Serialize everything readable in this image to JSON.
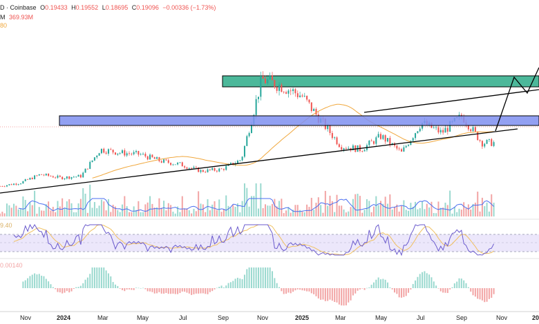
{
  "header": {
    "symbol_tail": "D",
    "exchange": "Coinbase",
    "open_label": "O",
    "open_value": "0.19433",
    "high_label": "H",
    "high_value": "0.19552",
    "low_label": "L",
    "low_value": "0.18695",
    "close_label": "C",
    "close_value": "0.19096",
    "change_value": "−0.00336 (−1.73%)",
    "volume_tail": "M",
    "volume_value": "369.93M",
    "ma_tail": "80"
  },
  "rsi_panel": {
    "label": "9.40"
  },
  "macd_panel": {
    "label": "0.00140"
  },
  "colors": {
    "up": "#26a69a",
    "down": "#ef5350",
    "ma": "#f0a73c",
    "resistance_zone": "#4cb89a",
    "support_zone": "#7f8ff0",
    "rsi_line": "#6a5acd",
    "volume_ma": "#4a6ef0",
    "hist_up": "#9ad9cf",
    "hist_down": "#f2a4a4"
  },
  "x_axis": {
    "labels": [
      "Nov",
      "2024",
      "Mar",
      "May",
      "Jul",
      "Sep",
      "Nov",
      "2025",
      "Mar",
      "May",
      "Jul",
      "Sep",
      "Nov",
      "20"
    ]
  },
  "chart_data": {
    "type": "candlestick",
    "title": "",
    "x_axis_labels": [
      "Nov",
      "2024",
      "Mar",
      "May",
      "Jul",
      "Sep",
      "Nov",
      "2025",
      "Mar",
      "May",
      "Jul",
      "Sep",
      "Nov",
      "20"
    ],
    "ohlc_last": {
      "open": 0.19433,
      "high": 0.19552,
      "low": 0.18695,
      "close": 0.19096,
      "change": -0.00336,
      "change_pct": -1.73
    },
    "volume_last": "369.93M",
    "price_path": [
      {
        "date": "2023-10",
        "price": 0.06
      },
      {
        "date": "2023-11",
        "price": 0.07
      },
      {
        "date": "2023-12",
        "price": 0.095
      },
      {
        "date": "2024-01",
        "price": 0.085
      },
      {
        "date": "2024-02",
        "price": 0.09
      },
      {
        "date": "2024-03",
        "price": 0.17
      },
      {
        "date": "2024-04",
        "price": 0.16
      },
      {
        "date": "2024-05",
        "price": 0.155
      },
      {
        "date": "2024-06",
        "price": 0.135
      },
      {
        "date": "2024-07",
        "price": 0.125
      },
      {
        "date": "2024-08",
        "price": 0.105
      },
      {
        "date": "2024-09",
        "price": 0.11
      },
      {
        "date": "2024-10",
        "price": 0.14
      },
      {
        "date": "2024-11",
        "price": 0.38
      },
      {
        "date": "2024-12",
        "price": 0.36
      },
      {
        "date": "2025-01",
        "price": 0.33
      },
      {
        "date": "2025-02",
        "price": 0.25
      },
      {
        "date": "2025-03",
        "price": 0.18
      },
      {
        "date": "2025-04",
        "price": 0.17
      },
      {
        "date": "2025-05",
        "price": 0.21
      },
      {
        "date": "2025-06",
        "price": 0.16
      },
      {
        "date": "2025-07",
        "price": 0.25
      },
      {
        "date": "2025-08",
        "price": 0.22
      },
      {
        "date": "2025-09",
        "price": 0.27
      },
      {
        "date": "2025-10",
        "price": 0.19
      }
    ],
    "overlays": [
      "resistance zone (green rectangle)",
      "support zone (blue rectangle)",
      "rising support trendline",
      "upper channel line",
      "projected breakout path"
    ],
    "panels": [
      "price",
      "volume",
      "RSI",
      "MACD"
    ]
  }
}
